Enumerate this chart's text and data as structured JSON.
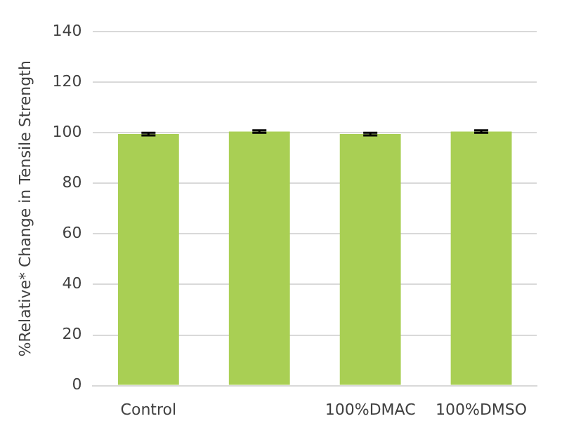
{
  "chart_data": {
    "type": "bar",
    "ylabel": "%Relative* Change in Tensile Strength",
    "categories": [
      "Control",
      null,
      "100%DMAC",
      "100%DMSO"
    ],
    "values": [
      99.5,
      100.5,
      99.5,
      100.5
    ],
    "errors": [
      0.5,
      0.5,
      0.5,
      0.5
    ],
    "color": "#a9cf54",
    "ylim": [
      0,
      140
    ],
    "yticks": [
      0,
      20,
      40,
      60,
      80,
      100,
      120,
      140
    ],
    "grid": "y"
  }
}
